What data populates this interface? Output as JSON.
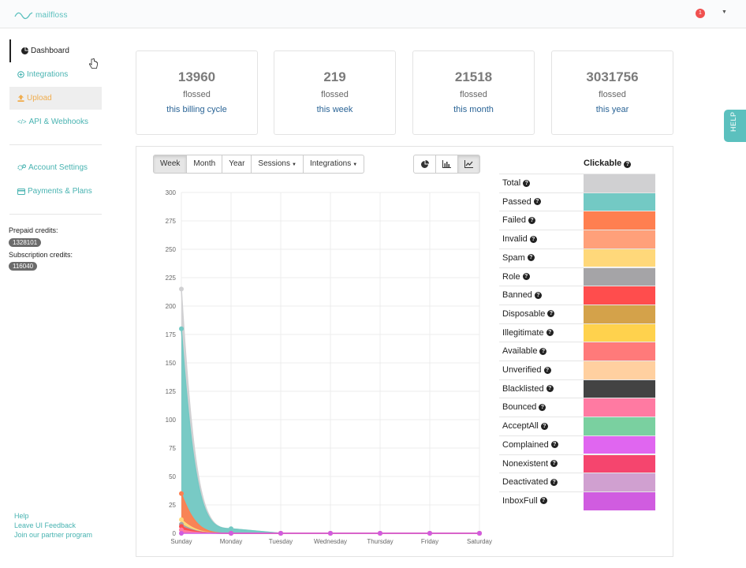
{
  "app": {
    "logo_text": "mailfloss",
    "notification_count": "1"
  },
  "sidebar": {
    "items": [
      {
        "label": "Dashboard",
        "icon": "dashboard-icon"
      },
      {
        "label": "Integrations",
        "icon": "plus-circle-icon"
      },
      {
        "label": "Upload",
        "icon": "upload-icon"
      },
      {
        "label": "API & Webhooks",
        "icon": "code-icon"
      },
      {
        "label": "Account Settings",
        "icon": "gears-icon"
      },
      {
        "label": "Payments & Plans",
        "icon": "credit-card-icon"
      }
    ],
    "prepaid_label": "Prepaid credits:",
    "prepaid_value": "1328101",
    "subscription_label": "Subscription credits:",
    "subscription_value": "116040",
    "footer": [
      "Help",
      "Leave UI Feedback",
      "Join our partner program"
    ]
  },
  "stats": [
    {
      "value": "13960",
      "label": "flossed",
      "period": "this billing cycle"
    },
    {
      "value": "219",
      "label": "flossed",
      "period": "this week"
    },
    {
      "value": "21518",
      "label": "flossed",
      "period": "this month"
    },
    {
      "value": "3031756",
      "label": "flossed",
      "period": "this year"
    }
  ],
  "help_tab": "HELP",
  "toolbar": {
    "range_buttons": [
      "Week",
      "Month",
      "Year"
    ],
    "active_range": "Week",
    "dropdowns": [
      "Sessions",
      "Integrations"
    ],
    "chart_type_icons": [
      "pie-chart-icon",
      "bar-chart-icon",
      "line-chart-icon"
    ],
    "active_chart_type": "line-chart-icon"
  },
  "legend": {
    "header": "Clickable",
    "items": [
      {
        "name": "Total",
        "color": "#d0d0d2"
      },
      {
        "name": "Passed",
        "color": "#73c9c4"
      },
      {
        "name": "Failed",
        "color": "#ff7f50"
      },
      {
        "name": "Invalid",
        "color": "#ffa07a"
      },
      {
        "name": "Spam",
        "color": "#ffd87a"
      },
      {
        "name": "Role",
        "color": "#a5a4a7"
      },
      {
        "name": "Banned",
        "color": "#ff4d4d"
      },
      {
        "name": "Disposable",
        "color": "#d4a24a"
      },
      {
        "name": "Illegitimate",
        "color": "#ffd24d"
      },
      {
        "name": "Available",
        "color": "#ff7a7a"
      },
      {
        "name": "Unverified",
        "color": "#ffd0a0"
      },
      {
        "name": "Blacklisted",
        "color": "#434343"
      },
      {
        "name": "Bounced",
        "color": "#ff7aa2"
      },
      {
        "name": "AcceptAll",
        "color": "#7ad0a0"
      },
      {
        "name": "Complained",
        "color": "#e066f0"
      },
      {
        "name": "Nonexistent",
        "color": "#f5456e"
      },
      {
        "name": "Deactivated",
        "color": "#d0a0d0"
      },
      {
        "name": "InboxFull",
        "color": "#d05ce0"
      }
    ]
  },
  "chart_data": {
    "type": "area",
    "categories": [
      "Sunday",
      "Monday",
      "Tuesday",
      "Wednesday",
      "Thursday",
      "Friday",
      "Saturday"
    ],
    "ylim": [
      0,
      300
    ],
    "yticks": [
      0,
      25,
      50,
      75,
      100,
      125,
      150,
      175,
      200,
      225,
      250,
      275,
      300
    ],
    "grid": true,
    "series": [
      {
        "name": "Total",
        "color": "#d0d0d2",
        "values": [
          215,
          4,
          0,
          0,
          0,
          0,
          0
        ]
      },
      {
        "name": "Passed",
        "color": "#73c9c4",
        "values": [
          180,
          4,
          0,
          0,
          0,
          0,
          0
        ]
      },
      {
        "name": "Failed",
        "color": "#ff7f50",
        "values": [
          35,
          0,
          0,
          0,
          0,
          0,
          0
        ]
      },
      {
        "name": "Spam",
        "color": "#ffd87a",
        "values": [
          12,
          0,
          0,
          0,
          0,
          0,
          0
        ]
      },
      {
        "name": "Role",
        "color": "#a5a4a7",
        "values": [
          8,
          0,
          0,
          0,
          0,
          0,
          0
        ]
      },
      {
        "name": "Banned",
        "color": "#ff4d4d",
        "values": [
          6,
          0,
          0,
          0,
          0,
          0,
          0
        ]
      },
      {
        "name": "Bounced",
        "color": "#ff7aa2",
        "values": [
          3,
          0,
          0,
          0,
          0,
          0,
          0
        ]
      },
      {
        "name": "InboxFull",
        "color": "#d05ce0",
        "values": [
          0,
          0,
          0,
          0,
          0,
          0,
          0
        ]
      }
    ]
  }
}
